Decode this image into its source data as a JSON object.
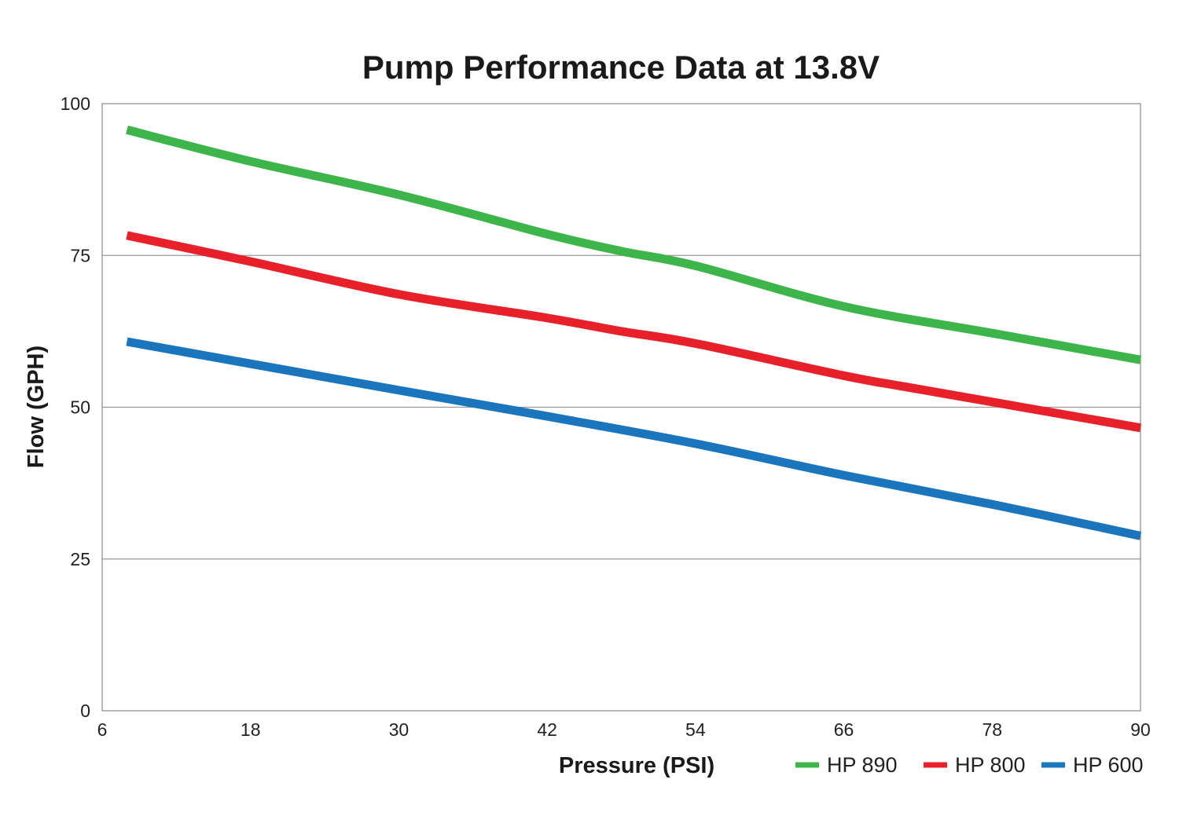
{
  "chart_data": {
    "type": "line",
    "title": "Pump Performance Data at 13.8V",
    "xlabel": "Pressure (PSI)",
    "ylabel": "Flow (GPH)",
    "xlim": [
      6,
      90
    ],
    "ylim": [
      0,
      100
    ],
    "xticks": [
      6,
      18,
      30,
      42,
      54,
      66,
      78,
      90
    ],
    "yticks": [
      0,
      25,
      50,
      75,
      100
    ],
    "grid": "horizontal",
    "legend": "bottom-right",
    "series": [
      {
        "name": "HP 890",
        "color": "#3db54a",
        "x": [
          8,
          18,
          30,
          42,
          48,
          54,
          66,
          78,
          90
        ],
        "y": [
          95.7,
          90.5,
          85,
          78.5,
          75.7,
          73.3,
          66.6,
          62.2,
          57.8
        ]
      },
      {
        "name": "HP 800",
        "color": "#e8202a",
        "x": [
          8,
          18,
          30,
          42,
          48,
          54,
          66,
          72,
          90
        ],
        "y": [
          78.3,
          74,
          68.6,
          64.7,
          62.5,
          60.5,
          55.2,
          53,
          46.6
        ]
      },
      {
        "name": "HP 600",
        "color": "#1b75bc",
        "x": [
          8,
          30,
          42,
          54,
          66,
          78,
          90
        ],
        "y": [
          60.8,
          52.8,
          48.5,
          44,
          38.8,
          34,
          28.8
        ]
      }
    ]
  }
}
